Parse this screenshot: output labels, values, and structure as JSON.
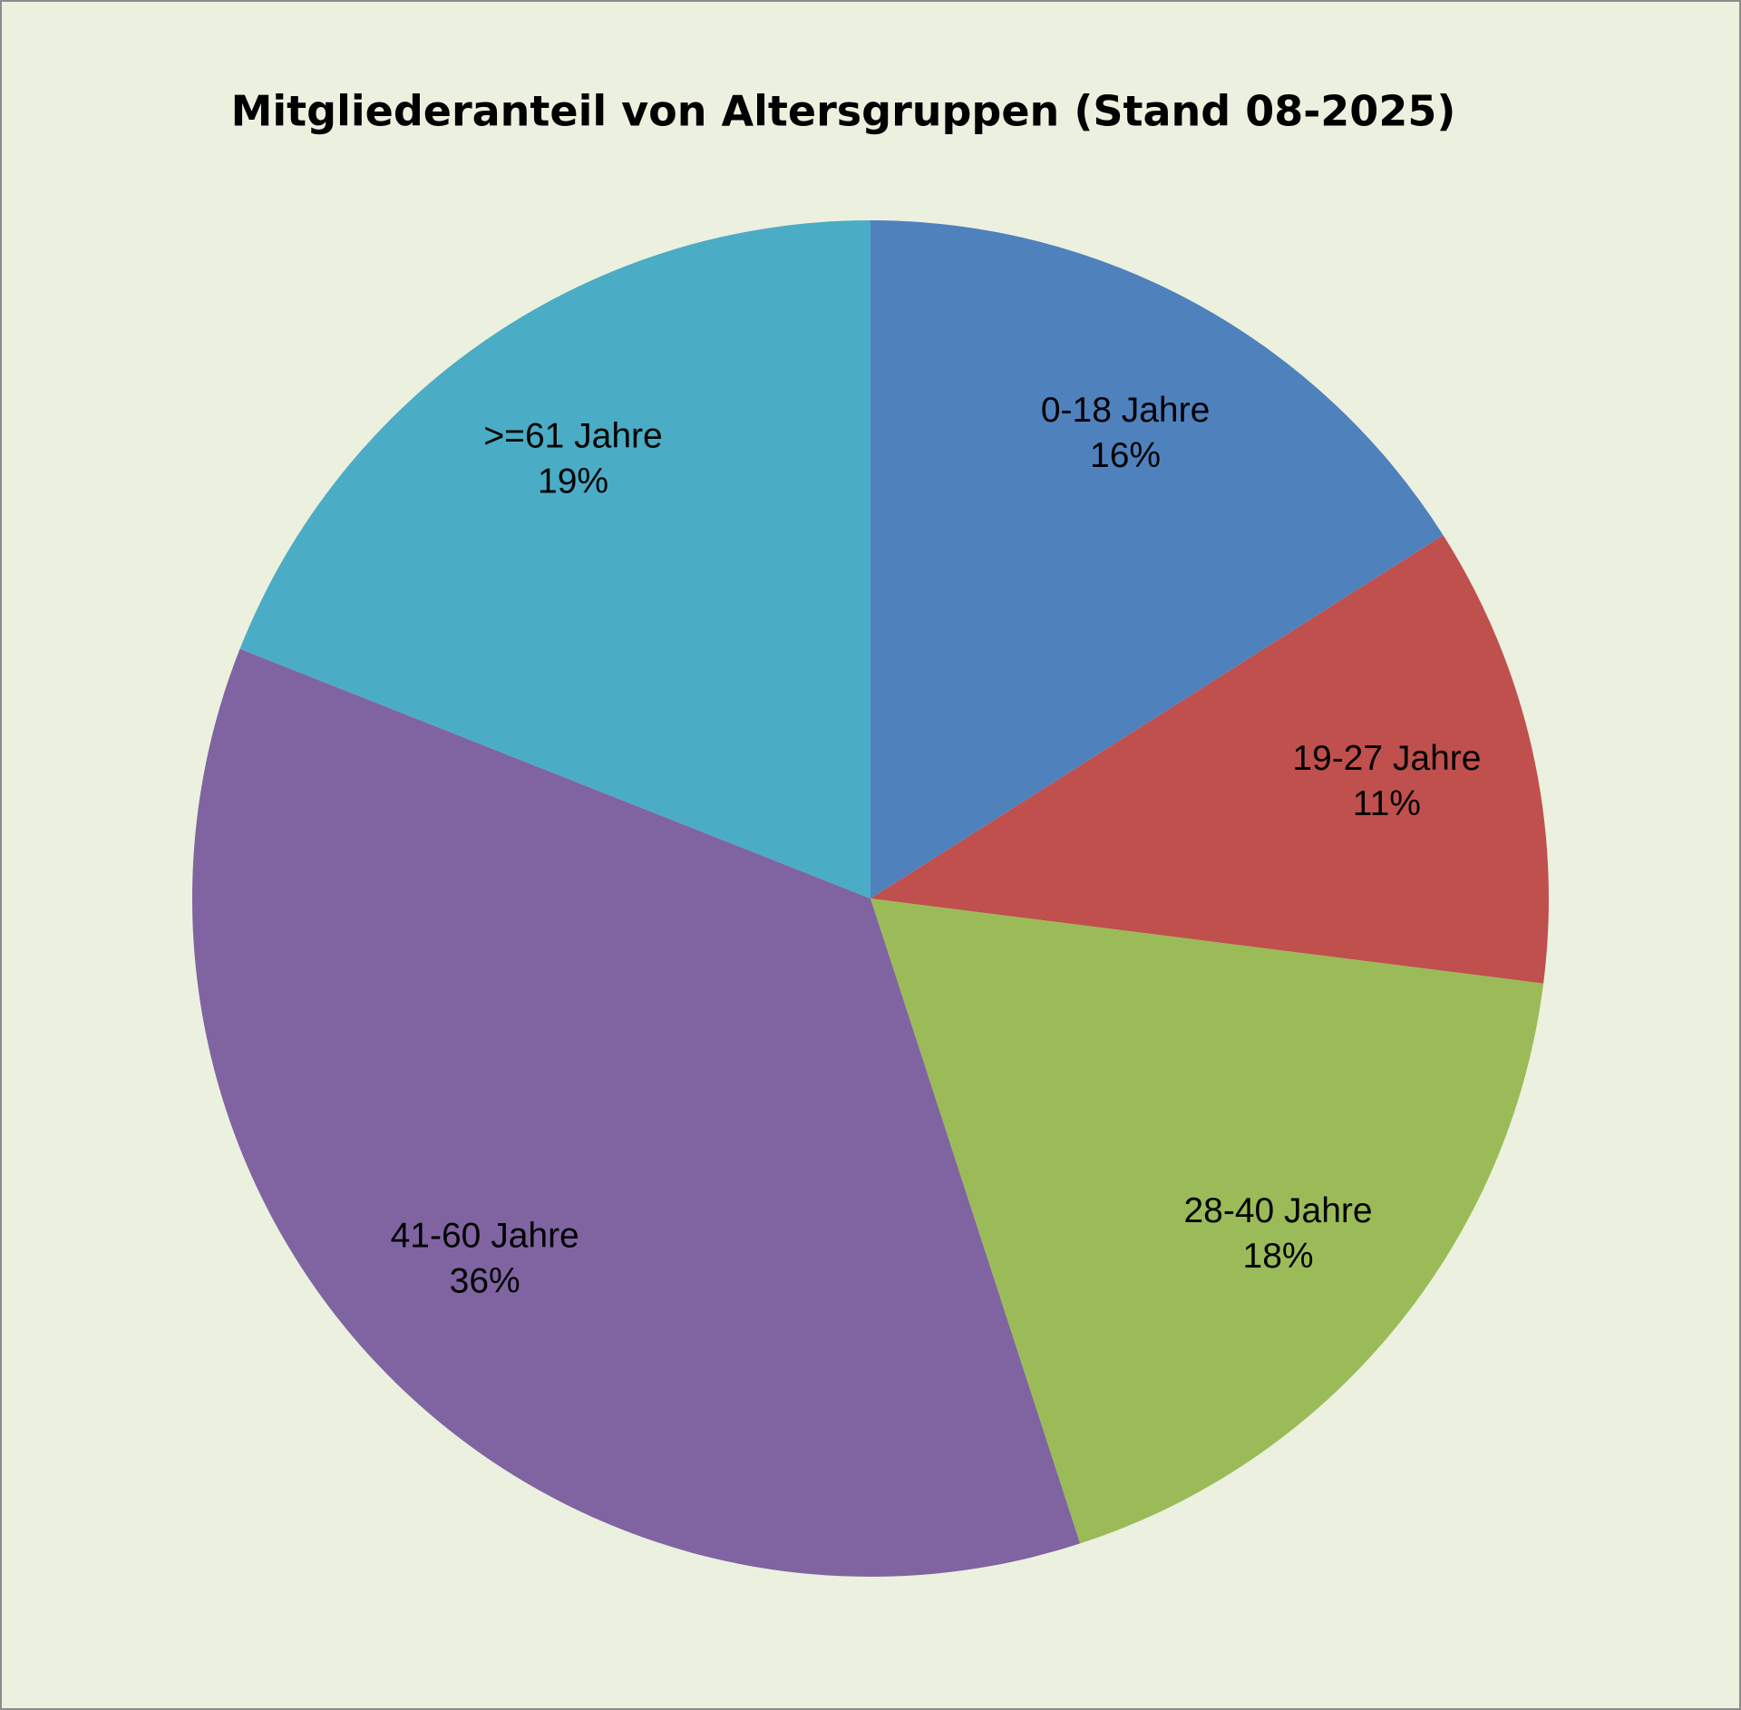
{
  "chart_data": {
    "type": "pie",
    "title": "Mitgliederanteil von Altersgruppen (Stand 08-2025)",
    "categories": [
      "0-18 Jahre",
      "19-27 Jahre",
      "28-40 Jahre",
      "41-60 Jahre",
      ">=61 Jahre"
    ],
    "values": [
      16,
      11,
      18,
      36,
      19
    ],
    "value_labels": [
      "16%",
      "11%",
      "18%",
      "36%",
      "19%"
    ],
    "colors": [
      "#4F81BD",
      "#C0504D",
      "#9BBB59",
      "#8064A2",
      "#4BACC6"
    ]
  }
}
